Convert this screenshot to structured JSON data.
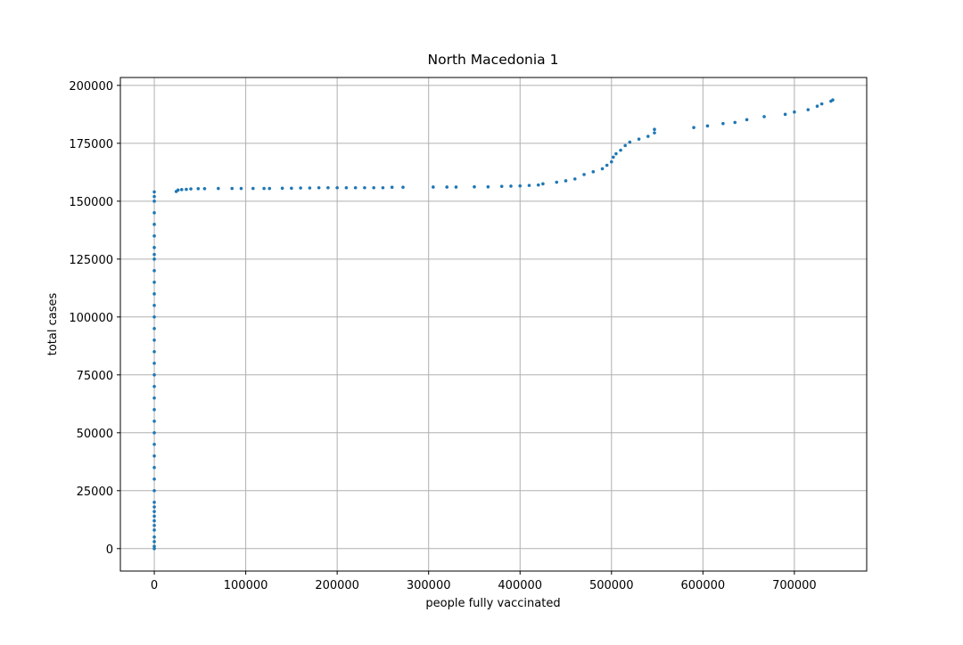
{
  "chart_data": {
    "type": "scatter",
    "title": "North Macedonia 1",
    "x_label": "people fully vaccinated",
    "y_label": "total cases",
    "color": "#1f77b4",
    "grid": true,
    "xlim": [
      -37100,
      779100
    ],
    "ylim": [
      -9700,
      203400
    ],
    "xticks": [
      0,
      100000,
      200000,
      300000,
      400000,
      500000,
      600000,
      700000
    ],
    "yticks": [
      0,
      25000,
      50000,
      75000,
      100000,
      125000,
      150000,
      175000,
      200000
    ],
    "x": [
      0,
      0,
      0,
      0,
      0,
      0,
      0,
      0,
      0,
      0,
      0,
      0,
      0,
      0,
      0,
      0,
      0,
      0,
      0,
      0,
      0,
      0,
      0,
      0,
      0,
      0,
      0,
      0,
      0,
      0,
      0,
      0,
      0,
      0,
      0,
      0,
      0,
      0,
      0,
      0,
      24000,
      26000,
      30000,
      35000,
      40000,
      48000,
      55000,
      70000,
      85000,
      95000,
      108000,
      120000,
      126000,
      140000,
      150000,
      160000,
      170000,
      180000,
      190000,
      200000,
      210000,
      220000,
      230000,
      240000,
      250000,
      260000,
      272000,
      305000,
      320000,
      330000,
      350000,
      365000,
      380000,
      390000,
      400000,
      410000,
      420000,
      425000,
      440000,
      450000,
      460000,
      470000,
      480000,
      490000,
      495000,
      500000,
      502000,
      505000,
      510000,
      515000,
      520000,
      530000,
      540000,
      547000,
      547000,
      590000,
      605000,
      622000,
      635000,
      648000,
      667000,
      690000,
      700000,
      715000,
      725000,
      730000,
      740000,
      742000
    ],
    "values": [
      0,
      1000,
      3000,
      5000,
      8000,
      10000,
      12000,
      14000,
      16000,
      18000,
      20000,
      25000,
      30000,
      35000,
      40000,
      45000,
      50000,
      55000,
      60000,
      65000,
      70000,
      75000,
      80000,
      85000,
      90000,
      95000,
      100000,
      105000,
      110000,
      115000,
      120000,
      125000,
      127000,
      130000,
      135000,
      140000,
      145000,
      150000,
      152000,
      154000,
      154200,
      154800,
      155000,
      155100,
      155300,
      155400,
      155400,
      155500,
      155500,
      155500,
      155500,
      155500,
      155500,
      155600,
      155600,
      155700,
      155700,
      155800,
      155800,
      155800,
      155800,
      155800,
      155800,
      155800,
      155800,
      156000,
      156000,
      156100,
      156100,
      156100,
      156200,
      156200,
      156400,
      156500,
      156600,
      156800,
      157000,
      157500,
      158200,
      158800,
      159600,
      161500,
      162700,
      164000,
      165500,
      167000,
      169000,
      170500,
      172000,
      174000,
      175500,
      176800,
      178000,
      179500,
      181000,
      181800,
      182500,
      183500,
      184000,
      185200,
      186500,
      187500,
      188500,
      189500,
      191000,
      192000,
      193200,
      193700
    ]
  }
}
